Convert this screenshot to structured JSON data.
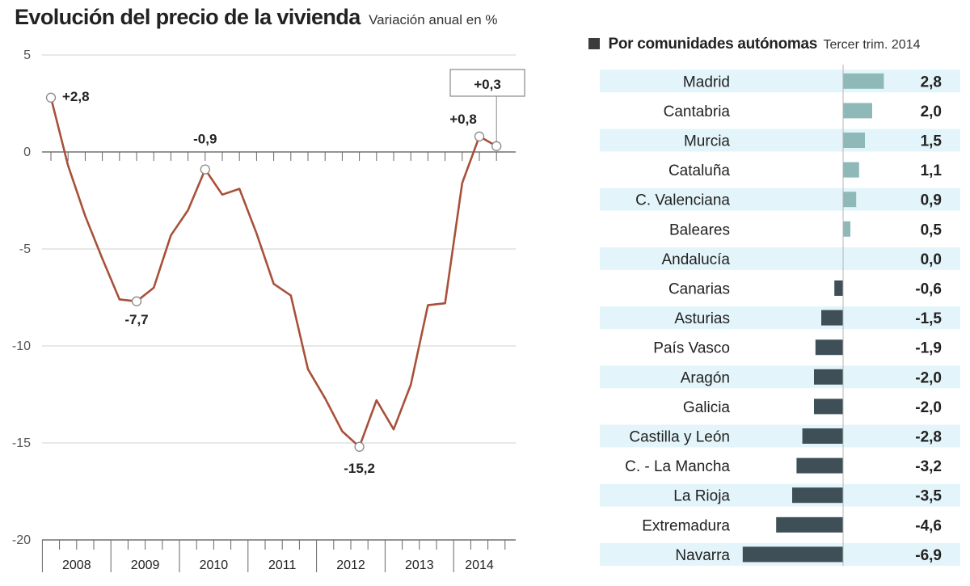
{
  "chart_data": [
    {
      "type": "line",
      "title": "Evolución del precio de la vivienda",
      "subtitle": "Variación anual en %",
      "ylim": [
        -20,
        5
      ],
      "yticks": [
        5,
        0,
        -5,
        -10,
        -15,
        -20
      ],
      "ytick_labels": [
        "5",
        "0",
        "-5",
        "-10",
        "-15",
        "-20"
      ],
      "grid": true,
      "x_categories": [
        "2008",
        "2009",
        "2010",
        "2011",
        "2012",
        "2013",
        "2014"
      ],
      "x_quarters": [
        "2008T1",
        "2008T2",
        "2008T3",
        "2008T4",
        "2009T1",
        "2009T2",
        "2009T3",
        "2009T4",
        "2010T1",
        "2010T2",
        "2010T3",
        "2010T4",
        "2011T1",
        "2011T2",
        "2011T3",
        "2011T4",
        "2012T1",
        "2012T2",
        "2012T3",
        "2012T4",
        "2013T1",
        "2013T2",
        "2013T3",
        "2013T4",
        "2014T1",
        "2014T2",
        "2014T3"
      ],
      "series": [
        {
          "color": "#a8503a",
          "values": [
            2.8,
            -0.7,
            -3.3,
            -5.5,
            -7.6,
            -7.7,
            -7.0,
            -4.3,
            -3.0,
            -0.9,
            -2.2,
            -1.9,
            -4.2,
            -6.8,
            -7.4,
            -11.2,
            -12.7,
            -14.4,
            -15.2,
            -12.8,
            -14.3,
            -12.0,
            -7.9,
            -7.8,
            -1.6,
            0.8,
            0.3
          ]
        }
      ],
      "annotations": [
        {
          "label": "+2,8",
          "index": 0,
          "value": 2.8
        },
        {
          "label": "-7,7",
          "index": 5,
          "value": -7.7
        },
        {
          "label": "-0,9",
          "index": 9,
          "value": -0.9
        },
        {
          "label": "-15,2",
          "index": 18,
          "value": -15.2
        },
        {
          "label": "+0,8",
          "index": 25,
          "value": 0.8
        },
        {
          "label": "+0,3",
          "index": 26,
          "value": 0.3,
          "boxed": true
        }
      ]
    },
    {
      "type": "bar",
      "orientation": "horizontal",
      "title": "Por comunidades autónomas",
      "subtitle": "Tercer trim. 2014",
      "categories": [
        "Madrid",
        "Cantabria",
        "Murcia",
        "Cataluña",
        "C. Valenciana",
        "Baleares",
        "Andalucía",
        "Canarias",
        "Asturias",
        "País Vasco",
        "Aragón",
        "Galicia",
        "Castilla y León",
        "C. - La Mancha",
        "La Rioja",
        "Extremadura",
        "Navarra"
      ],
      "values": [
        2.8,
        2.0,
        1.5,
        1.1,
        0.9,
        0.5,
        0.0,
        -0.6,
        -1.5,
        -1.9,
        -2.0,
        -2.0,
        -2.8,
        -3.2,
        -3.5,
        -4.6,
        -6.9
      ],
      "value_labels": [
        "2,8",
        "2,0",
        "1,5",
        "1,1",
        "0,9",
        "0,5",
        "0,0",
        "-0,6",
        "-1,5",
        "-1,9",
        "-2,0",
        "-2,0",
        "-2,8",
        "-3,2",
        "-3,5",
        "-4,6",
        "-6,9"
      ],
      "colors": {
        "positive": "#8fb9b9",
        "negative": "#3e4f57",
        "stripe": "#e3f5fa"
      }
    }
  ]
}
